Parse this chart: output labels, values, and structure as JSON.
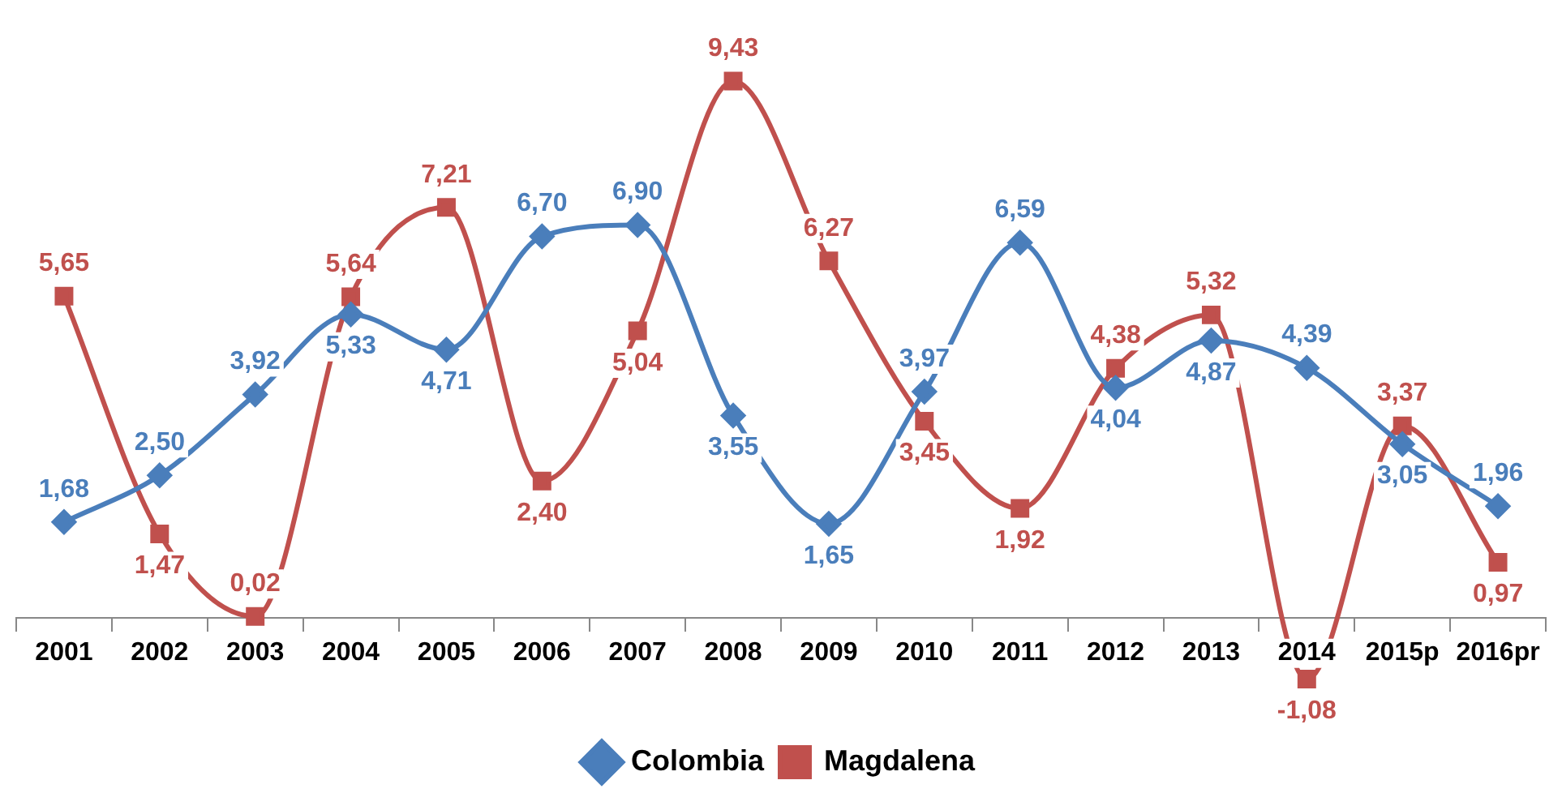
{
  "chart_data": {
    "type": "line",
    "categories": [
      "2001",
      "2002",
      "2003",
      "2004",
      "2005",
      "2006",
      "2007",
      "2008",
      "2009",
      "2010",
      "2011",
      "2012",
      "2013",
      "2014",
      "2015p",
      "2016pr"
    ],
    "series": [
      {
        "name": "Colombia",
        "color": "#4a7ebb",
        "marker": "diamond",
        "values": [
          1.68,
          2.5,
          3.92,
          5.33,
          4.71,
          6.7,
          6.9,
          3.55,
          1.65,
          3.97,
          6.59,
          4.04,
          4.87,
          4.39,
          3.05,
          1.96
        ],
        "value_labels": [
          "1,68",
          "2,50",
          "3,92",
          "5,33",
          "4,71",
          "6,70",
          "6,90",
          "3,55",
          "1,65",
          "3,97",
          "6,59",
          "4,04",
          "4,87",
          "4,39",
          "3,05",
          "1,96"
        ]
      },
      {
        "name": "Magdalena",
        "color": "#c0504d",
        "marker": "square",
        "values": [
          5.65,
          1.47,
          0.02,
          5.64,
          7.21,
          2.4,
          5.04,
          9.43,
          6.27,
          3.45,
          1.92,
          4.38,
          5.32,
          -1.08,
          3.37,
          0.97
        ],
        "value_labels": [
          "5,65",
          "1,47",
          "0,02",
          "5,64",
          "7,21",
          "2,40",
          "5,04",
          "9,43",
          "6,27",
          "3,45",
          "1,92",
          "4,38",
          "5,32",
          "-1,08",
          "3,37",
          "0,97"
        ]
      }
    ],
    "grid": false,
    "legend": "bottom",
    "line_style": "solid"
  }
}
